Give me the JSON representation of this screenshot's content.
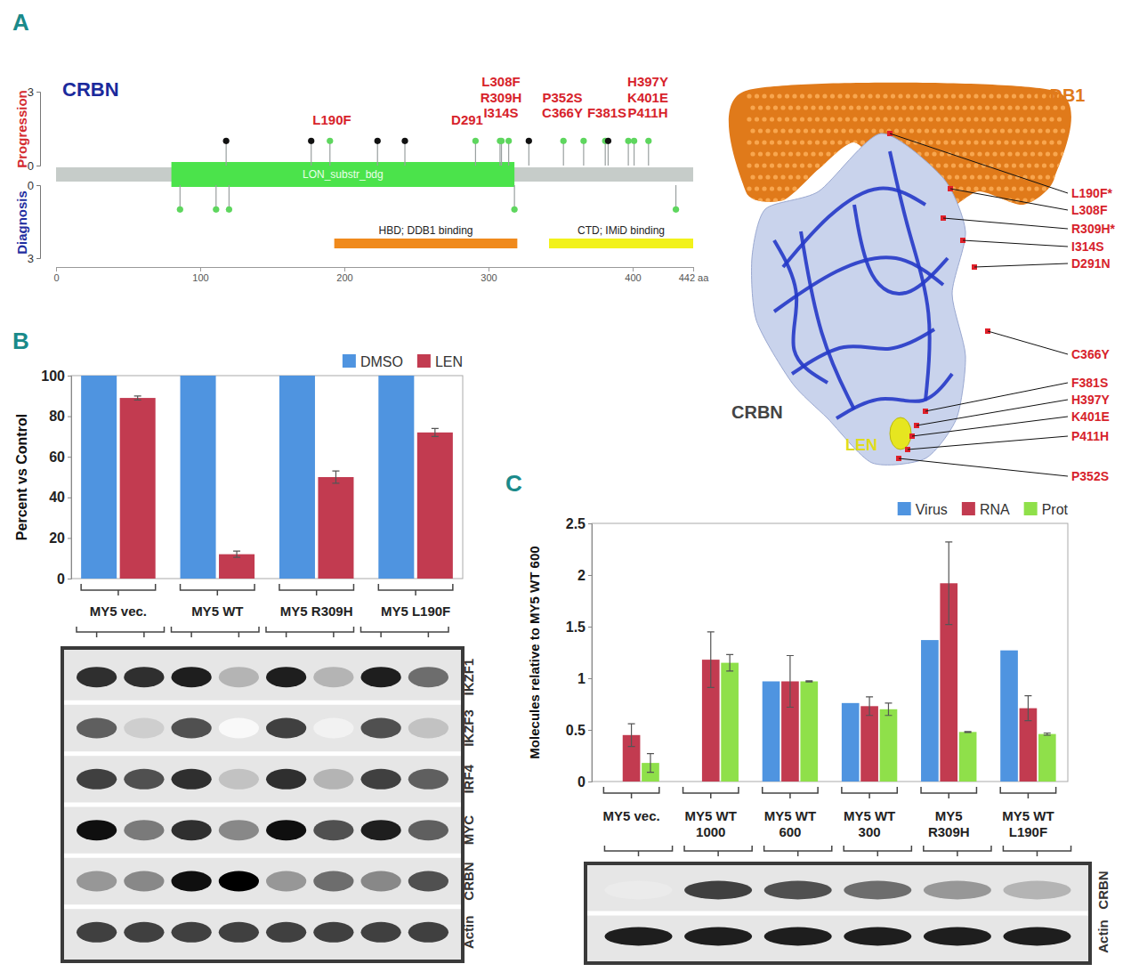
{
  "panels": [
    "A",
    "B",
    "C"
  ],
  "chart_data": [
    {
      "type": "lollipop",
      "title": "CRBN",
      "xlim": [
        0,
        442
      ],
      "xticks": [
        0,
        100,
        200,
        300,
        400,
        {
          "value": 442,
          "label": "442 aa"
        }
      ],
      "ylim": [
        0,
        3
      ],
      "yticks": [
        0,
        3
      ],
      "series": [
        {
          "name": "Progression",
          "color": "#d42a2f",
          "x": [
            118,
            177,
            190,
            223,
            242,
            291,
            308,
            309,
            314,
            328,
            352,
            366,
            381,
            383,
            397,
            401,
            411
          ],
          "values": [
            1,
            1,
            1,
            1,
            1,
            1,
            1,
            1,
            1,
            1,
            1,
            1,
            1,
            1,
            1,
            1,
            1
          ],
          "colors": [
            "#111111",
            "#111111",
            "#5ed65e",
            "#111111",
            "#111111",
            "#5ed65e",
            "#5ed65e",
            "#5ed65e",
            "#5ed65e",
            "#111111",
            "#5ed65e",
            "#5ed65e",
            "#5ed65e",
            "#111111",
            "#5ed65e",
            "#5ed65e",
            "#5ed65e"
          ]
        },
        {
          "name": "Diagnosis",
          "color": "#1f2ea0",
          "x": [
            86,
            111,
            120,
            318,
            430
          ],
          "values": [
            1,
            1,
            1,
            1,
            1
          ],
          "colors": [
            "#5ed65e",
            "#5ed65e",
            "#5ed65e",
            "#5ed65e",
            "#5ed65e"
          ]
        }
      ],
      "domains": [
        {
          "label": "LON_substr_bdg",
          "start": 80,
          "end": 318,
          "color": "#4be34b"
        },
        {
          "label": "HBD; DDB1 binding",
          "start": 193,
          "end": 320,
          "color": "#f08a1c"
        },
        {
          "label": "CTD; IMiD binding",
          "start": 342,
          "end": 442,
          "color": "#f2f21a"
        }
      ],
      "annotations": [
        [
          "L190F"
        ],
        [
          "D291"
        ],
        [
          "L308F",
          "R309H",
          "I314S"
        ],
        [
          "P352S",
          "C366Y"
        ],
        [
          "F381S"
        ],
        [
          "H397Y",
          "K401E",
          "P411H"
        ]
      ],
      "grid": false
    },
    {
      "type": "bar",
      "categories": [
        "MY5 vec.",
        "MY5 WT",
        "MY5 R309H",
        "MY5 L190F"
      ],
      "series": [
        {
          "name": "DMSO",
          "color": "#4f94e0",
          "values": [
            100,
            100,
            100,
            100
          ]
        },
        {
          "name": "LEN",
          "color": "#c23b50",
          "values": [
            89,
            12,
            50,
            72
          ],
          "errors": [
            1,
            1.5,
            3,
            2
          ]
        }
      ],
      "ylabel": "Percent vs Control",
      "ylim": [
        0,
        100
      ],
      "yticks": [
        0,
        20,
        40,
        60,
        80,
        100
      ],
      "legend": "top-right",
      "grid": false
    },
    {
      "type": "bar",
      "categories": [
        "MY5 vec.",
        "MY5 WT\n1000",
        "MY5 WT\n600",
        "MY5 WT\n300",
        "MY5\nR309H",
        "MY5 WT\nL190F"
      ],
      "series": [
        {
          "name": "Virus",
          "color": "#4f94e0",
          "values": [
            null,
            null,
            0.97,
            0.76,
            1.37,
            1.27
          ]
        },
        {
          "name": "RNA",
          "color": "#c23b50",
          "values": [
            0.45,
            1.18,
            0.97,
            0.73,
            1.92,
            0.71
          ],
          "errors": [
            0.11,
            0.27,
            0.25,
            0.09,
            0.4,
            0.12
          ]
        },
        {
          "name": "Prot",
          "color": "#8fe04a",
          "values": [
            0.18,
            1.15,
            0.97,
            0.7,
            0.48,
            0.46
          ],
          "errors": [
            0.09,
            0.08,
            0.005,
            0.06,
            0.005,
            0.01
          ]
        }
      ],
      "ylabel": "Molecules relative to MY5 WT 600",
      "ylim": [
        0,
        2.5
      ],
      "yticks": [
        0,
        0.5,
        1,
        1.5,
        2,
        2.5
      ],
      "legend": "top-right",
      "grid": false
    }
  ],
  "structure": {
    "labels": {
      "ddb1": "DDB1",
      "crbn": "CRBN",
      "ligand": "LEN"
    },
    "mutations": [
      "L190F*",
      "L308F",
      "R309H*",
      "I314S",
      "D291N",
      "C366Y",
      "F381S",
      "H397Y",
      "K401E",
      "P411H",
      "P352S"
    ]
  },
  "blot_b": {
    "rows": [
      "IKZF1",
      "IKZF3",
      "IRF4",
      "MYC",
      "CRBN",
      "Actin"
    ],
    "intensity": [
      [
        0.85,
        0.85,
        0.9,
        0.4,
        0.9,
        0.4,
        0.9,
        0.65
      ],
      [
        0.7,
        0.3,
        0.75,
        0.05,
        0.8,
        0.1,
        0.75,
        0.35
      ],
      [
        0.8,
        0.75,
        0.85,
        0.35,
        0.85,
        0.4,
        0.8,
        0.7
      ],
      [
        0.95,
        0.6,
        0.85,
        0.55,
        0.95,
        0.75,
        0.9,
        0.7
      ],
      [
        0.5,
        0.55,
        0.95,
        1,
        0.5,
        0.65,
        0.55,
        0.75
      ],
      [
        0.8,
        0.8,
        0.8,
        0.8,
        0.8,
        0.8,
        0.8,
        0.8
      ]
    ]
  },
  "blot_c": {
    "rows": [
      "CRBN",
      "Actin"
    ],
    "intensity": [
      [
        0.15,
        0.8,
        0.75,
        0.65,
        0.5,
        0.4
      ],
      [
        0.9,
        0.9,
        0.9,
        0.9,
        0.9,
        0.9
      ]
    ]
  }
}
